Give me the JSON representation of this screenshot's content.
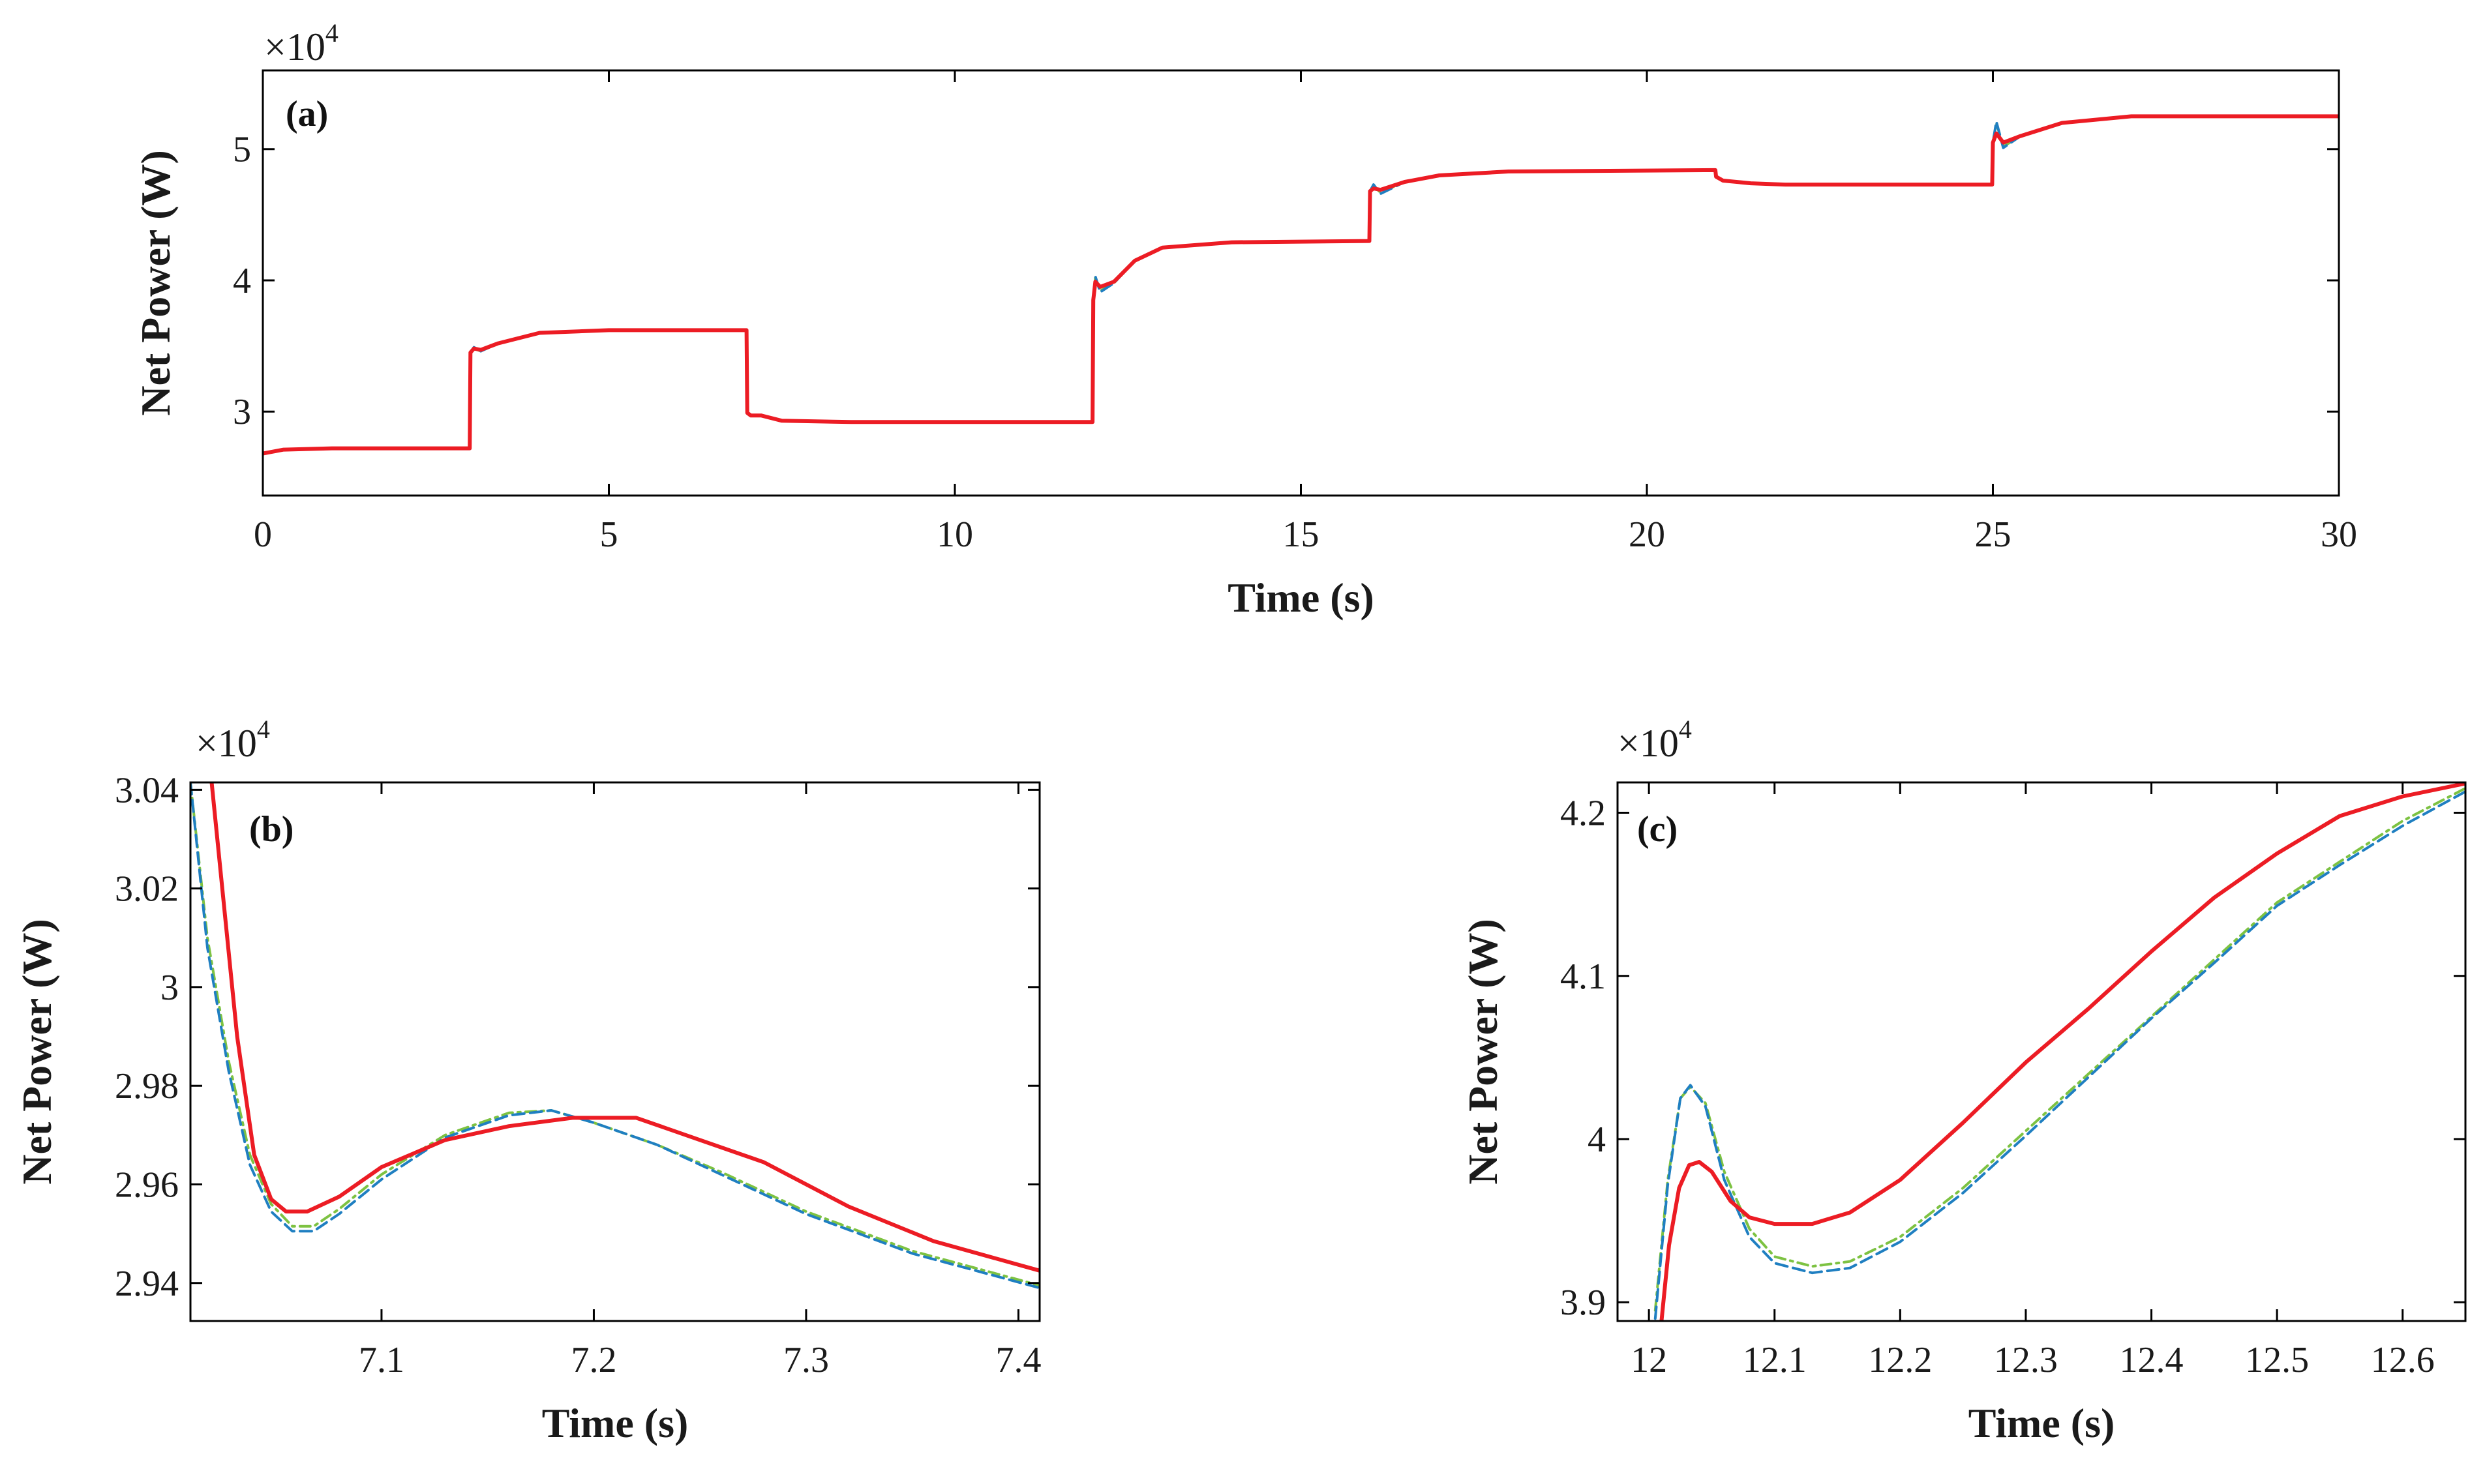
{
  "chart_data": [
    {
      "id": "a",
      "type": "line",
      "panel_label": "(a)",
      "xlabel": "Time (s)",
      "ylabel": "Net Power (W)",
      "multiplier": "×10",
      "multiplier_exp": "4",
      "xlim": [
        0,
        30
      ],
      "ylim": [
        2.36,
        5.6
      ],
      "xticks": [
        0,
        5,
        10,
        15,
        20,
        25,
        30
      ],
      "xtick_labels": [
        "0",
        "5",
        "10",
        "15",
        "20",
        "25",
        "30"
      ],
      "yticks": [
        3,
        4,
        5
      ],
      "ytick_labels": [
        "3",
        "4",
        "5"
      ],
      "series": [
        {
          "name": "green",
          "color": "#7dc242",
          "dash": "16,8,4,8",
          "width": 4,
          "x": [
            0,
            0.3,
            1,
            2.99,
            3.0,
            3.05,
            3.15,
            3.4,
            4,
            5,
            6.99,
            7.0,
            7.05,
            7.2,
            7.5,
            8.5,
            11.99,
            12.0,
            12.03,
            12.1,
            12.3,
            12.6,
            13,
            14,
            15.99,
            16.0,
            16.05,
            16.15,
            16.5,
            17,
            18,
            20.99,
            21.0,
            21.1,
            21.5,
            22,
            24.99,
            25.0,
            25.05,
            25.15,
            25.4,
            26,
            27,
            30
          ],
          "y": [
            2.68,
            2.71,
            2.72,
            2.72,
            3.45,
            3.48,
            3.46,
            3.52,
            3.6,
            3.62,
            3.62,
            2.99,
            2.97,
            2.97,
            2.93,
            2.92,
            2.92,
            3.85,
            4.02,
            3.92,
            3.98,
            4.15,
            4.25,
            4.29,
            4.3,
            4.68,
            4.72,
            4.67,
            4.75,
            4.8,
            4.83,
            4.84,
            4.79,
            4.76,
            4.74,
            4.73,
            4.73,
            5.05,
            5.2,
            5.02,
            5.1,
            5.2,
            5.25,
            5.25
          ]
        },
        {
          "name": "blue",
          "color": "#1f7fc1",
          "dash": "18,9",
          "width": 4,
          "x": [
            0,
            0.3,
            1,
            2.99,
            3.0,
            3.05,
            3.15,
            3.4,
            4,
            5,
            6.99,
            7.0,
            7.05,
            7.2,
            7.5,
            8.5,
            11.99,
            12.0,
            12.03,
            12.1,
            12.3,
            12.6,
            13,
            14,
            15.99,
            16.0,
            16.05,
            16.15,
            16.5,
            17,
            18,
            20.99,
            21.0,
            21.1,
            21.5,
            22,
            24.99,
            25.0,
            25.05,
            25.15,
            25.4,
            26,
            27,
            30
          ],
          "y": [
            2.68,
            2.71,
            2.72,
            2.72,
            3.45,
            3.49,
            3.46,
            3.52,
            3.6,
            3.62,
            3.62,
            2.99,
            2.97,
            2.97,
            2.93,
            2.92,
            2.92,
            3.85,
            4.03,
            3.91,
            3.98,
            4.15,
            4.25,
            4.29,
            4.3,
            4.68,
            4.73,
            4.66,
            4.75,
            4.8,
            4.83,
            4.84,
            4.79,
            4.76,
            4.74,
            4.73,
            4.73,
            5.05,
            5.21,
            5.01,
            5.1,
            5.2,
            5.25,
            5.25
          ]
        },
        {
          "name": "red",
          "color": "#ec1c24",
          "dash": "",
          "width": 6,
          "x": [
            0,
            0.3,
            1,
            2.99,
            3.0,
            3.05,
            3.15,
            3.4,
            4,
            5,
            6.99,
            7.0,
            7.05,
            7.2,
            7.5,
            8.5,
            11.99,
            12.0,
            12.03,
            12.1,
            12.3,
            12.6,
            13,
            14,
            15.99,
            16.0,
            16.05,
            16.15,
            16.5,
            17,
            18,
            20.99,
            21.0,
            21.1,
            21.5,
            22,
            24.99,
            25.0,
            25.05,
            25.15,
            25.4,
            26,
            27,
            30
          ],
          "y": [
            2.68,
            2.71,
            2.72,
            2.72,
            3.45,
            3.48,
            3.47,
            3.52,
            3.6,
            3.62,
            3.62,
            2.99,
            2.97,
            2.97,
            2.93,
            2.92,
            2.92,
            3.85,
            3.99,
            3.95,
            3.99,
            4.15,
            4.25,
            4.29,
            4.3,
            4.68,
            4.7,
            4.69,
            4.75,
            4.8,
            4.83,
            4.84,
            4.79,
            4.76,
            4.74,
            4.73,
            4.73,
            5.05,
            5.12,
            5.05,
            5.1,
            5.2,
            5.25,
            5.25
          ]
        }
      ]
    },
    {
      "id": "b",
      "type": "line",
      "panel_label": "(b)",
      "xlabel": "Time (s)",
      "ylabel": "Net Power (W)",
      "multiplier": "×10",
      "multiplier_exp": "4",
      "xlim": [
        7.01,
        7.41
      ],
      "ylim": [
        2.9323,
        3.0415
      ],
      "xticks": [
        7.1,
        7.2,
        7.3,
        7.4
      ],
      "xtick_labels": [
        "7.1",
        "7.2",
        "7.3",
        "7.4"
      ],
      "yticks": [
        2.94,
        2.96,
        2.98,
        3.0,
        3.02,
        3.04
      ],
      "ytick_labels": [
        "2.94",
        "2.96",
        "2.98",
        "3",
        "3.02",
        "3.04"
      ],
      "series": [
        {
          "name": "green",
          "color": "#7dc242",
          "dash": "16,8,4,8",
          "width": 4,
          "x": [
            7.01,
            7.018,
            7.028,
            7.038,
            7.048,
            7.058,
            7.068,
            7.08,
            7.1,
            7.13,
            7.16,
            7.18,
            7.2,
            7.23,
            7.26,
            7.3,
            7.35,
            7.41
          ],
          "y": [
            3.0415,
            3.01,
            2.985,
            2.966,
            2.956,
            2.9515,
            2.9515,
            2.955,
            2.962,
            2.97,
            2.9745,
            2.975,
            2.9725,
            2.968,
            2.9625,
            2.9545,
            2.9465,
            2.9395
          ]
        },
        {
          "name": "blue",
          "color": "#1f7fc1",
          "dash": "18,9",
          "width": 4,
          "x": [
            7.01,
            7.018,
            7.028,
            7.038,
            7.048,
            7.058,
            7.068,
            7.08,
            7.1,
            7.13,
            7.16,
            7.18,
            7.2,
            7.23,
            7.26,
            7.3,
            7.35,
            7.41
          ],
          "y": [
            3.0415,
            3.008,
            2.983,
            2.964,
            2.9545,
            2.9505,
            2.9505,
            2.954,
            2.961,
            2.9695,
            2.974,
            2.975,
            2.9725,
            2.968,
            2.962,
            2.954,
            2.946,
            2.939
          ]
        },
        {
          "name": "red",
          "color": "#ec1c24",
          "dash": "",
          "width": 6,
          "x": [
            7.02,
            7.025,
            7.032,
            7.04,
            7.048,
            7.055,
            7.065,
            7.08,
            7.1,
            7.13,
            7.16,
            7.19,
            7.22,
            7.25,
            7.28,
            7.32,
            7.36,
            7.41
          ],
          "y": [
            3.0415,
            3.02,
            2.99,
            2.966,
            2.957,
            2.9545,
            2.9545,
            2.9575,
            2.9635,
            2.969,
            2.9718,
            2.9735,
            2.9735,
            2.969,
            2.9645,
            2.9555,
            2.9485,
            2.9425
          ]
        }
      ]
    },
    {
      "id": "c",
      "type": "line",
      "panel_label": "(c)",
      "xlabel": "Time (s)",
      "ylabel": "Net Power (W)",
      "multiplier": "×10",
      "multiplier_exp": "4",
      "xlim": [
        11.975,
        12.65
      ],
      "ylim": [
        3.8885,
        4.2186
      ],
      "xticks": [
        12,
        12.1,
        12.2,
        12.3,
        12.4,
        12.5,
        12.6
      ],
      "xtick_labels": [
        "12",
        "12.1",
        "12.2",
        "12.3",
        "12.4",
        "12.5",
        "12.6"
      ],
      "yticks": [
        3.9,
        4.0,
        4.1,
        4.2
      ],
      "ytick_labels": [
        "3.9",
        "4",
        "4.1",
        "4.2"
      ],
      "series": [
        {
          "name": "green",
          "color": "#7dc242",
          "dash": "16,8,4,8",
          "width": 4,
          "x": [
            12.005,
            12.015,
            12.025,
            12.033,
            12.045,
            12.06,
            12.08,
            12.1,
            12.13,
            12.16,
            12.2,
            12.25,
            12.3,
            12.35,
            12.4,
            12.45,
            12.5,
            12.55,
            12.6,
            12.65
          ],
          "y": [
            3.895,
            3.975,
            4.025,
            4.032,
            4.022,
            3.98,
            3.945,
            3.928,
            3.922,
            3.925,
            3.94,
            3.97,
            4.005,
            4.04,
            4.075,
            4.11,
            4.145,
            4.17,
            4.195,
            4.215
          ]
        },
        {
          "name": "blue",
          "color": "#1f7fc1",
          "dash": "18,9",
          "width": 4,
          "x": [
            12.005,
            12.015,
            12.025,
            12.033,
            12.045,
            12.06,
            12.08,
            12.1,
            12.13,
            12.16,
            12.2,
            12.25,
            12.3,
            12.35,
            12.4,
            12.45,
            12.5,
            12.55,
            12.6,
            12.65
          ],
          "y": [
            3.89,
            3.972,
            4.025,
            4.033,
            4.02,
            3.975,
            3.94,
            3.924,
            3.918,
            3.921,
            3.937,
            3.967,
            4.002,
            4.038,
            4.074,
            4.108,
            4.143,
            4.168,
            4.192,
            4.213
          ]
        },
        {
          "name": "red",
          "color": "#ec1c24",
          "dash": "",
          "width": 6,
          "x": [
            12.01,
            12.016,
            12.024,
            12.032,
            12.04,
            12.05,
            12.065,
            12.08,
            12.1,
            12.13,
            12.16,
            12.2,
            12.25,
            12.3,
            12.35,
            12.4,
            12.45,
            12.5,
            12.55,
            12.6,
            12.65
          ],
          "y": [
            3.8885,
            3.935,
            3.97,
            3.984,
            3.986,
            3.98,
            3.962,
            3.952,
            3.948,
            3.948,
            3.955,
            3.975,
            4.01,
            4.047,
            4.08,
            4.115,
            4.148,
            4.175,
            4.198,
            4.21,
            4.218
          ]
        }
      ]
    }
  ]
}
